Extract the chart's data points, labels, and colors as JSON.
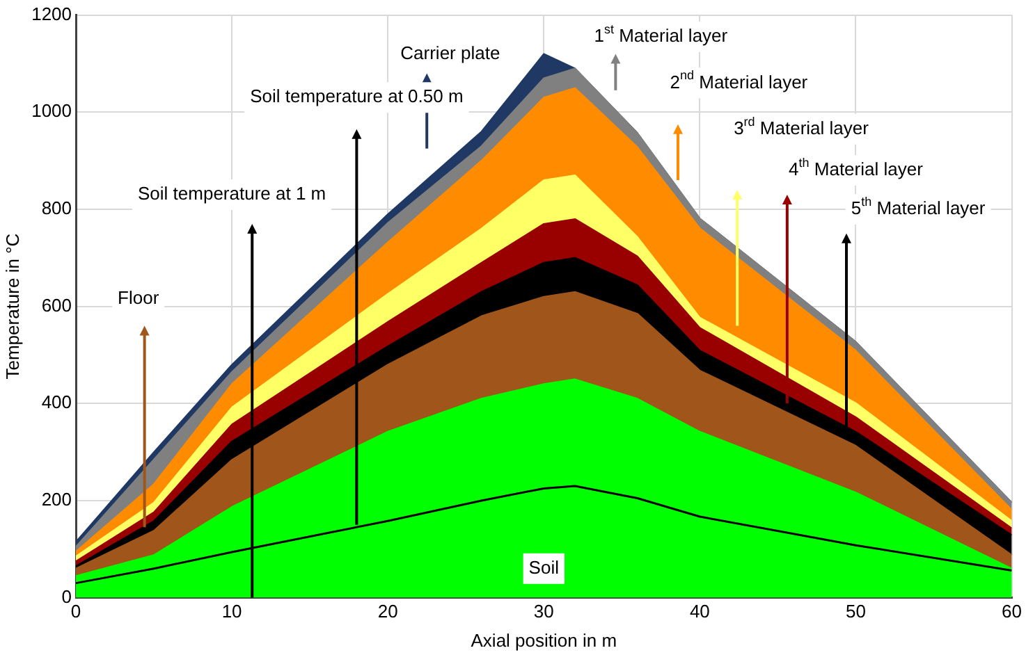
{
  "chart_data": {
    "type": "area",
    "xlabel": "Axial position in m",
    "ylabel": "Temperature in °C",
    "x": [
      0,
      5,
      10,
      20,
      26,
      30,
      32,
      36,
      40,
      50,
      60
    ],
    "series": [
      {
        "color": "#00ff00",
        "values": [
          45,
          88,
          187,
          342,
          410,
          440,
          450,
          410,
          342,
          217,
          60
        ]
      },
      {
        "color": "#a0561b",
        "values": [
          60,
          138,
          284,
          480,
          580,
          620,
          630,
          585,
          468,
          313,
          88
        ]
      },
      {
        "color": "#000000",
        "values": [
          65,
          158,
          322,
          518,
          630,
          690,
          700,
          644,
          509,
          342,
          129
        ]
      },
      {
        "color": "#990000",
        "values": [
          75,
          176,
          357,
          568,
          690,
          770,
          780,
          703,
          556,
          372,
          143
        ]
      },
      {
        "color": "#ffff66",
        "values": [
          85,
          196,
          392,
          626,
          760,
          860,
          870,
          743,
          577,
          401,
          158
        ]
      },
      {
        "color": "#ff8c00",
        "values": [
          95,
          234,
          440,
          732,
          900,
          1030,
          1050,
          928,
          761,
          509,
          181
        ]
      },
      {
        "color": "#808080",
        "values": [
          105,
          285,
          465,
          772,
          930,
          1070,
          1090,
          957,
          781,
          527,
          196
        ]
      },
      {
        "color": "#1f3864",
        "values": [
          115,
          300,
          480,
          790,
          960,
          1120,
          1090,
          957,
          781,
          527,
          196
        ]
      },
      {
        "type": "line",
        "color": "#000000",
        "values": [
          30,
          60,
          94,
          158,
          200,
          225,
          230,
          205,
          167,
          108,
          56
        ]
      }
    ],
    "xlim": [
      0,
      60
    ],
    "xticks": [
      0,
      10,
      20,
      30,
      40,
      50,
      60
    ],
    "ylim": [
      0,
      1200
    ],
    "yticks": [
      0,
      200,
      400,
      600,
      800,
      1000,
      1200
    ],
    "grid": true,
    "marker": "none",
    "annotations": [
      "Carrier plate",
      "1$^{st}$ Material layer",
      "2$^{nd}$ Material layer",
      "3$^{rd}$ Material layer",
      "4$^{th}$ Material layer",
      "5$^{th}$ Material layer",
      "Floor",
      "Soil temperature at 1 m",
      "Soil temperature at 0.50 m",
      "Soil"
    ]
  }
}
